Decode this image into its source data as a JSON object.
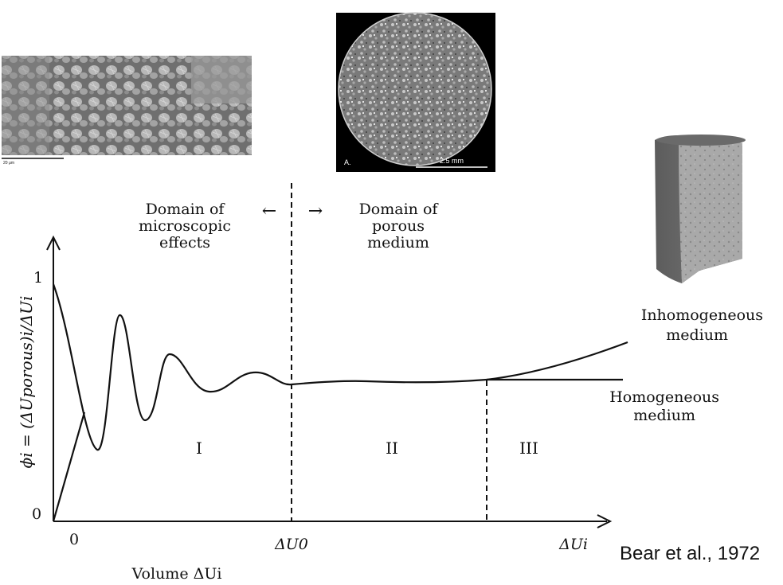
{
  "images": {
    "sem": {
      "icon": "sem-micrograph-image",
      "scale_text": "20 μm"
    },
    "ct_slice": {
      "icon": "ct-slice-image",
      "panel_letter": "A.",
      "scale_text": "2.5 mm"
    },
    "core": {
      "icon": "rock-core-3d-image"
    }
  },
  "diagram": {
    "domain_left": [
      "Domain of",
      "microscopic",
      "effects"
    ],
    "domain_right": [
      "Domain of",
      "porous",
      "medium"
    ],
    "arrow_left": "←",
    "arrow_right": "→",
    "y_axis_label": "ϕi = (ΔUporous)i/ΔUi",
    "y_tick_top": "1",
    "y_tick_bottom": "0",
    "x_tick_origin": "0",
    "x_tick_u0": "ΔU0",
    "x_tick_ui": "ΔUi",
    "x_axis_label": "Volume ΔUi",
    "region_1": "I",
    "region_2": "II",
    "region_3": "III",
    "inhomogeneous": [
      "Inhomogeneous",
      "medium"
    ],
    "homogeneous": [
      "Homogeneous",
      "medium"
    ]
  },
  "citation": "Bear et al., 1972"
}
